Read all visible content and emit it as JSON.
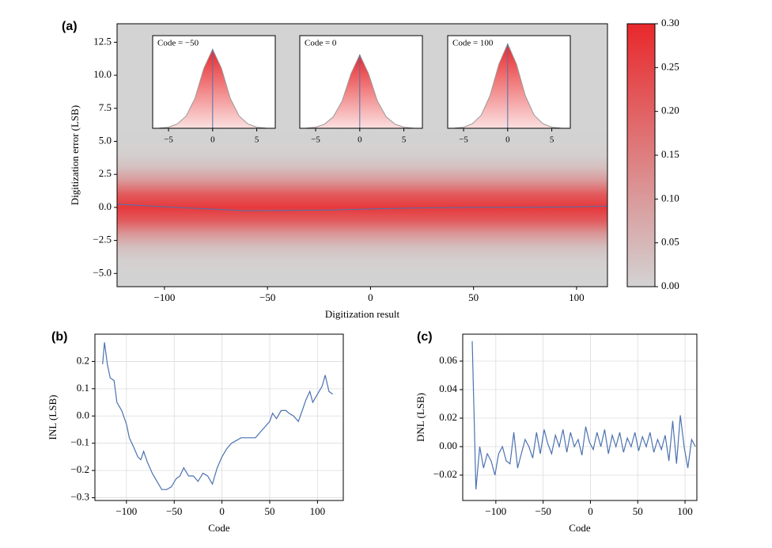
{
  "chart_data": [
    {
      "type": "heatmap",
      "panel_label": "(a)",
      "xlabel": "Digitization result",
      "ylabel": "Digitization error (LSB)",
      "xlim": [
        -123,
        115
      ],
      "ylim": [
        -6,
        13.9
      ],
      "xticks": [
        {
          "value": -100,
          "label": "−100"
        },
        {
          "value": -50,
          "label": "−50"
        },
        0,
        50,
        100
      ],
      "yticks": [
        12.5,
        {
          "value": 10,
          "label": "10.0"
        },
        7.5,
        {
          "value": 5,
          "label": "5.0"
        },
        2.5,
        {
          "value": 0,
          "label": "0.0"
        },
        {
          "value": -2.5,
          "label": "−2.5"
        },
        {
          "value": -5,
          "label": "−5.0"
        }
      ],
      "colormap": [
        "#d3d3d3",
        "#e8282b"
      ],
      "zlim": [
        0,
        0.3
      ],
      "zticks": [
        {
          "value": 0,
          "label": "0.00"
        },
        0.05,
        {
          "value": 0.1,
          "label": "0.10"
        },
        0.15,
        {
          "value": 0.2,
          "label": "0.20"
        },
        0.25,
        {
          "value": 0.3,
          "label": "0.30"
        }
      ],
      "profile": {
        "y": [
          -6,
          -5,
          -4,
          -3,
          -2,
          -1,
          0,
          1,
          2,
          3,
          4,
          5,
          6
        ],
        "values": [
          0,
          0.001,
          0.0075,
          0.035,
          0.105,
          0.21,
          0.27,
          0.21,
          0.105,
          0.035,
          0.0075,
          0.001,
          0
        ]
      },
      "mean_line": {
        "x": [
          -123,
          -100,
          -75,
          -60,
          -40,
          -20,
          0,
          20,
          50,
          80,
          100,
          115
        ],
        "values": [
          0.25,
          0.05,
          -0.15,
          -0.25,
          -0.22,
          -0.2,
          -0.12,
          -0.05,
          0,
          0.02,
          0.05,
          0.1
        ],
        "color": "#4c72b0"
      },
      "insets": [
        {
          "type": "area",
          "title": "Code = −50",
          "xlim": [
            -6.8,
            7.1
          ],
          "ylim": [
            0,
            0.34
          ],
          "xticks": [
            {
              "value": -5,
              "label": "−5"
            },
            0,
            5
          ],
          "x": [
            -6,
            -5,
            -4,
            -3,
            -2,
            -1,
            0,
            1,
            2,
            3,
            4,
            5,
            6
          ],
          "values": [
            0.001,
            0.004,
            0.016,
            0.045,
            0.11,
            0.22,
            0.29,
            0.22,
            0.11,
            0.045,
            0.016,
            0.004,
            0.001
          ],
          "color": "#e8282b"
        },
        {
          "type": "area",
          "title": "Code = 0",
          "xlim": [
            -6.8,
            7.1
          ],
          "ylim": [
            0,
            0.34
          ],
          "xticks": [
            {
              "value": -5,
              "label": "−5"
            },
            0,
            5
          ],
          "x": [
            -6,
            -5,
            -4,
            -3,
            -2,
            -1,
            0,
            1,
            2,
            3,
            4,
            5,
            6
          ],
          "values": [
            0.001,
            0.004,
            0.015,
            0.042,
            0.1,
            0.2,
            0.27,
            0.2,
            0.1,
            0.042,
            0.015,
            0.004,
            0.001
          ],
          "color": "#e8282b"
        },
        {
          "type": "area",
          "title": "Code = 100",
          "xlim": [
            -6.8,
            7.1
          ],
          "ylim": [
            0,
            0.34
          ],
          "xticks": [
            {
              "value": -5,
              "label": "−5"
            },
            0,
            5
          ],
          "x": [
            -6,
            -5,
            -4,
            -3,
            -2,
            -1,
            0,
            1,
            2,
            3,
            4,
            5,
            6
          ],
          "values": [
            0.001,
            0.004,
            0.017,
            0.048,
            0.12,
            0.235,
            0.31,
            0.235,
            0.12,
            0.048,
            0.017,
            0.004,
            0.001
          ],
          "color": "#e8282b"
        }
      ]
    },
    {
      "type": "line",
      "panel_label": "(b)",
      "xlabel": "Code",
      "ylabel": "INL (LSB)",
      "grid": true,
      "color": "#4c72b0",
      "xlim": [
        -133,
        127
      ],
      "ylim": [
        -0.31,
        0.3
      ],
      "xticks": [
        {
          "value": -100,
          "label": "−100"
        },
        {
          "value": -50,
          "label": "−50"
        },
        0,
        50,
        100
      ],
      "yticks": [
        0.2,
        0.1,
        {
          "value": 0,
          "label": "0.0"
        },
        {
          "value": -0.1,
          "label": "−0.1"
        },
        {
          "value": -0.2,
          "label": "−0.2"
        },
        {
          "value": -0.3,
          "label": "−0.3"
        }
      ],
      "x": [
        -125,
        -123,
        -120,
        -117,
        -113,
        -110,
        -105,
        -100,
        -97,
        -93,
        -88,
        -85,
        -82,
        -78,
        -73,
        -68,
        -63,
        -58,
        -53,
        -48,
        -44,
        -40,
        -35,
        -30,
        -25,
        -20,
        -15,
        -10,
        -5,
        0,
        5,
        10,
        15,
        20,
        25,
        30,
        35,
        40,
        45,
        50,
        53,
        57,
        62,
        67,
        70,
        75,
        80,
        85,
        88,
        92,
        95,
        100,
        105,
        108,
        112,
        116
      ],
      "values": [
        0.19,
        0.27,
        0.19,
        0.14,
        0.13,
        0.05,
        0.02,
        -0.03,
        -0.08,
        -0.11,
        -0.15,
        -0.16,
        -0.13,
        -0.17,
        -0.21,
        -0.24,
        -0.27,
        -0.27,
        -0.26,
        -0.23,
        -0.22,
        -0.19,
        -0.22,
        -0.22,
        -0.24,
        -0.21,
        -0.22,
        -0.25,
        -0.19,
        -0.15,
        -0.12,
        -0.1,
        -0.09,
        -0.08,
        -0.08,
        -0.08,
        -0.08,
        -0.06,
        -0.04,
        -0.02,
        0.01,
        -0.01,
        0.02,
        0.02,
        0.01,
        0,
        -0.02,
        0.03,
        0.06,
        0.09,
        0.05,
        0.08,
        0.11,
        0.15,
        0.09,
        0.08
      ]
    },
    {
      "type": "line",
      "panel_label": "(c)",
      "xlabel": "Code",
      "ylabel": "DNL (LSB)",
      "grid": true,
      "color": "#4c72b0",
      "xlim": [
        -135,
        112.5
      ],
      "ylim": [
        -0.0378,
        0.0789
      ],
      "xticks": [
        {
          "value": -100,
          "label": "−100"
        },
        {
          "value": -50,
          "label": "−50"
        },
        0,
        50,
        100
      ],
      "yticks": [
        0.06,
        0.04,
        0.02,
        {
          "value": 0,
          "label": "0.00"
        },
        {
          "value": -0.02,
          "label": "−0.02"
        }
      ],
      "x": [
        -125,
        -121,
        -117,
        -113,
        -109,
        -105,
        -101,
        -97,
        -93,
        -89,
        -85,
        -81,
        -77,
        -73,
        -69,
        -65,
        -61,
        -57,
        -53,
        -49,
        -45,
        -41,
        -37,
        -33,
        -29,
        -25,
        -21,
        -17,
        -13,
        -9,
        -5,
        -1,
        3,
        7,
        11,
        15,
        19,
        23,
        27,
        31,
        35,
        39,
        43,
        47,
        51,
        55,
        59,
        63,
        67,
        71,
        75,
        79,
        83,
        87,
        91,
        95,
        99,
        103,
        107,
        111
      ],
      "values": [
        0.074,
        -0.03,
        0,
        -0.015,
        -0.005,
        -0.01,
        -0.02,
        -0.005,
        0,
        -0.01,
        -0.012,
        0.01,
        -0.015,
        -0.005,
        0.005,
        0,
        -0.008,
        0.01,
        -0.005,
        0.012,
        0.002,
        -0.005,
        0.008,
        0,
        0.012,
        -0.004,
        0.01,
        0,
        0.005,
        -0.006,
        0.014,
        0.003,
        -0.002,
        0.01,
        0,
        0.012,
        -0.005,
        0.008,
        0,
        0.01,
        -0.004,
        0.006,
        0,
        0.01,
        -0.003,
        0.007,
        0,
        0.01,
        -0.004,
        0.005,
        -0.002,
        0.008,
        -0.01,
        0.018,
        -0.012,
        0.022,
        0,
        -0.015,
        0.005,
        0
      ]
    }
  ]
}
